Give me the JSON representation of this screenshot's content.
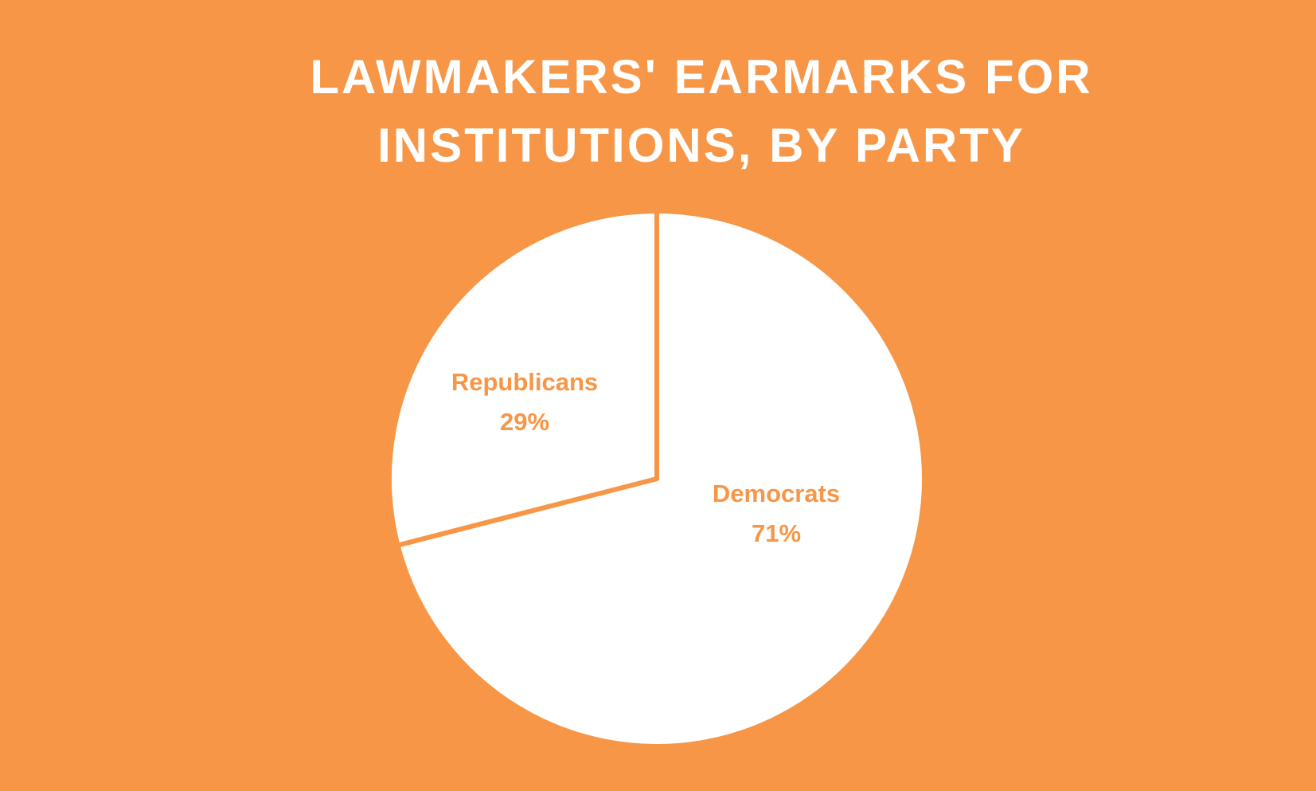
{
  "chart_data": {
    "type": "pie",
    "title": "LAWMAKERS' EARMARKS FOR INSTITUTIONS, BY PARTY",
    "categories": [
      "Democrats",
      "Republicans"
    ],
    "values": [
      71,
      29
    ],
    "value_labels": [
      "71%",
      "29%"
    ],
    "colors": [
      "#ffffff",
      "#ffffff"
    ],
    "background": "#f79646",
    "label_color": "#f79646"
  }
}
